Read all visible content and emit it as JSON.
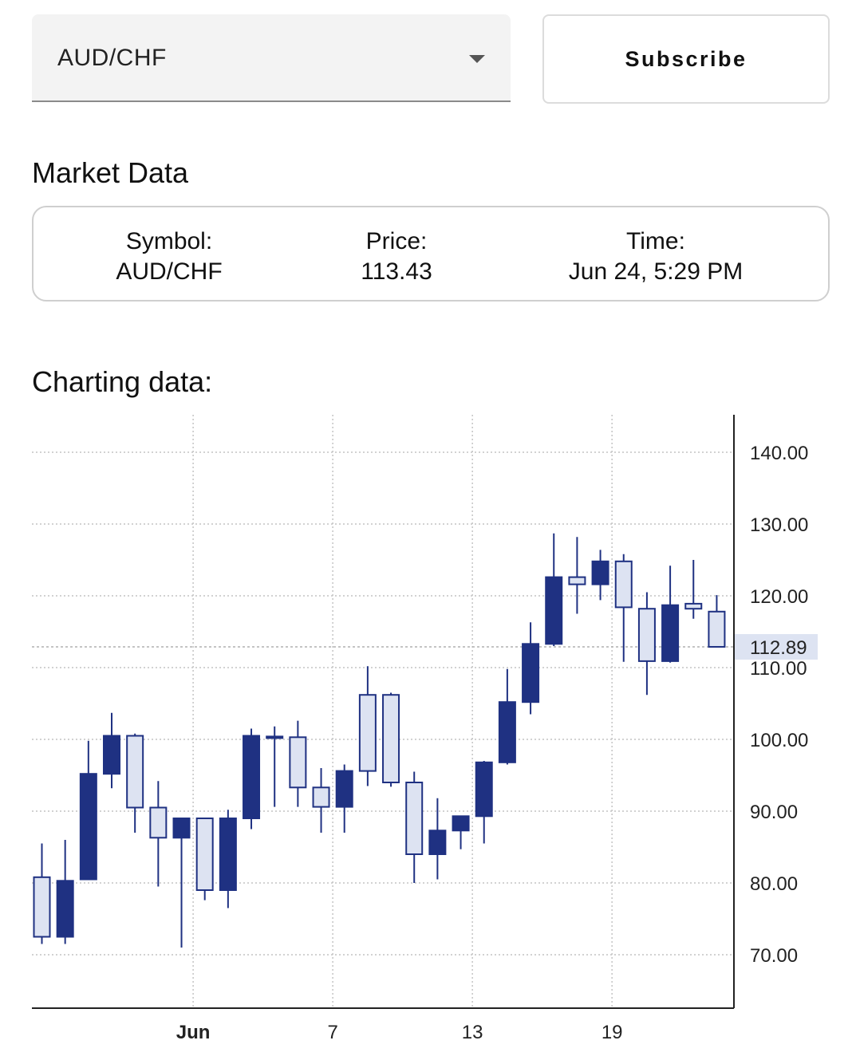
{
  "symbol_select": {
    "value": "AUD/CHF"
  },
  "subscribe_button": {
    "label": "Subscribe"
  },
  "market_data": {
    "title": "Market Data",
    "symbol_label": "Symbol:",
    "symbol_value": "AUD/CHF",
    "price_label": "Price:",
    "price_value": "113.43",
    "time_label": "Time:",
    "time_value": "Jun 24, 5:29 PM"
  },
  "charting_title": "Charting data:",
  "chart_data": {
    "type": "candlestick",
    "title": "",
    "xlabel": "",
    "ylabel": "",
    "ylim": [
      62.5,
      145
    ],
    "y_ticks": [
      70,
      80,
      90,
      100,
      110,
      120,
      130,
      140
    ],
    "y_tick_labels": [
      "70.00",
      "80.00",
      "90.00",
      "100.00",
      "110.00",
      "120.00",
      "130.00",
      "140.00"
    ],
    "x_ticks": [
      {
        "label": "Jun",
        "index": 6.5,
        "bold": true
      },
      {
        "label": "7",
        "index": 12.5,
        "bold": false
      },
      {
        "label": "13",
        "index": 18.5,
        "bold": false
      },
      {
        "label": "19",
        "index": 24.5,
        "bold": false
      }
    ],
    "last_price_label": "112.89",
    "last_price": 112.89,
    "grid": true,
    "up_color": "#dde3f2",
    "down_color": "#1f3182",
    "outline_color": "#1f3182",
    "candles": [
      {
        "open": 72.5,
        "high": 85.5,
        "low": 71.5,
        "close": 80.8
      },
      {
        "open": 80.3,
        "high": 86.0,
        "low": 71.5,
        "close": 72.5
      },
      {
        "open": 95.2,
        "high": 99.8,
        "low": 80.5,
        "close": 80.5
      },
      {
        "open": 100.5,
        "high": 103.7,
        "low": 93.2,
        "close": 95.2
      },
      {
        "open": 90.5,
        "high": 100.8,
        "low": 87.0,
        "close": 100.5
      },
      {
        "open": 86.3,
        "high": 94.2,
        "low": 79.5,
        "close": 90.5
      },
      {
        "open": 89.0,
        "high": 89.0,
        "low": 71.0,
        "close": 86.3
      },
      {
        "open": 79.0,
        "high": 89.0,
        "low": 77.6,
        "close": 89.0
      },
      {
        "open": 89.0,
        "high": 90.2,
        "low": 76.5,
        "close": 79.0
      },
      {
        "open": 100.5,
        "high": 101.5,
        "low": 87.5,
        "close": 89.0
      },
      {
        "open": 100.4,
        "high": 101.8,
        "low": 90.6,
        "close": 100.4
      },
      {
        "open": 93.3,
        "high": 102.6,
        "low": 90.6,
        "close": 100.3
      },
      {
        "open": 90.6,
        "high": 96.0,
        "low": 87.0,
        "close": 93.3
      },
      {
        "open": 95.6,
        "high": 96.5,
        "low": 87.0,
        "close": 90.6
      },
      {
        "open": 95.6,
        "high": 110.2,
        "low": 93.5,
        "close": 106.2
      },
      {
        "open": 94.0,
        "high": 106.5,
        "low": 93.4,
        "close": 106.2
      },
      {
        "open": 84.0,
        "high": 95.5,
        "low": 80.0,
        "close": 94.0
      },
      {
        "open": 87.3,
        "high": 91.8,
        "low": 80.5,
        "close": 84.0
      },
      {
        "open": 89.3,
        "high": 89.3,
        "low": 84.7,
        "close": 87.3
      },
      {
        "open": 96.8,
        "high": 97.0,
        "low": 85.5,
        "close": 89.3
      },
      {
        "open": 105.2,
        "high": 109.8,
        "low": 96.5,
        "close": 96.8
      },
      {
        "open": 113.3,
        "high": 116.3,
        "low": 103.5,
        "close": 105.2
      },
      {
        "open": 122.6,
        "high": 128.7,
        "low": 113.0,
        "close": 113.3
      },
      {
        "open": 121.6,
        "high": 128.2,
        "low": 117.5,
        "close": 122.6
      },
      {
        "open": 124.8,
        "high": 126.4,
        "low": 119.4,
        "close": 121.6
      },
      {
        "open": 118.4,
        "high": 125.8,
        "low": 110.8,
        "close": 124.8
      },
      {
        "open": 110.9,
        "high": 120.5,
        "low": 106.2,
        "close": 118.2
      },
      {
        "open": 118.7,
        "high": 124.2,
        "low": 110.7,
        "close": 110.9
      },
      {
        "open": 118.2,
        "high": 125.0,
        "low": 116.8,
        "close": 118.9
      },
      {
        "open": 112.89,
        "high": 120.1,
        "low": 112.89,
        "close": 117.8
      }
    ]
  }
}
